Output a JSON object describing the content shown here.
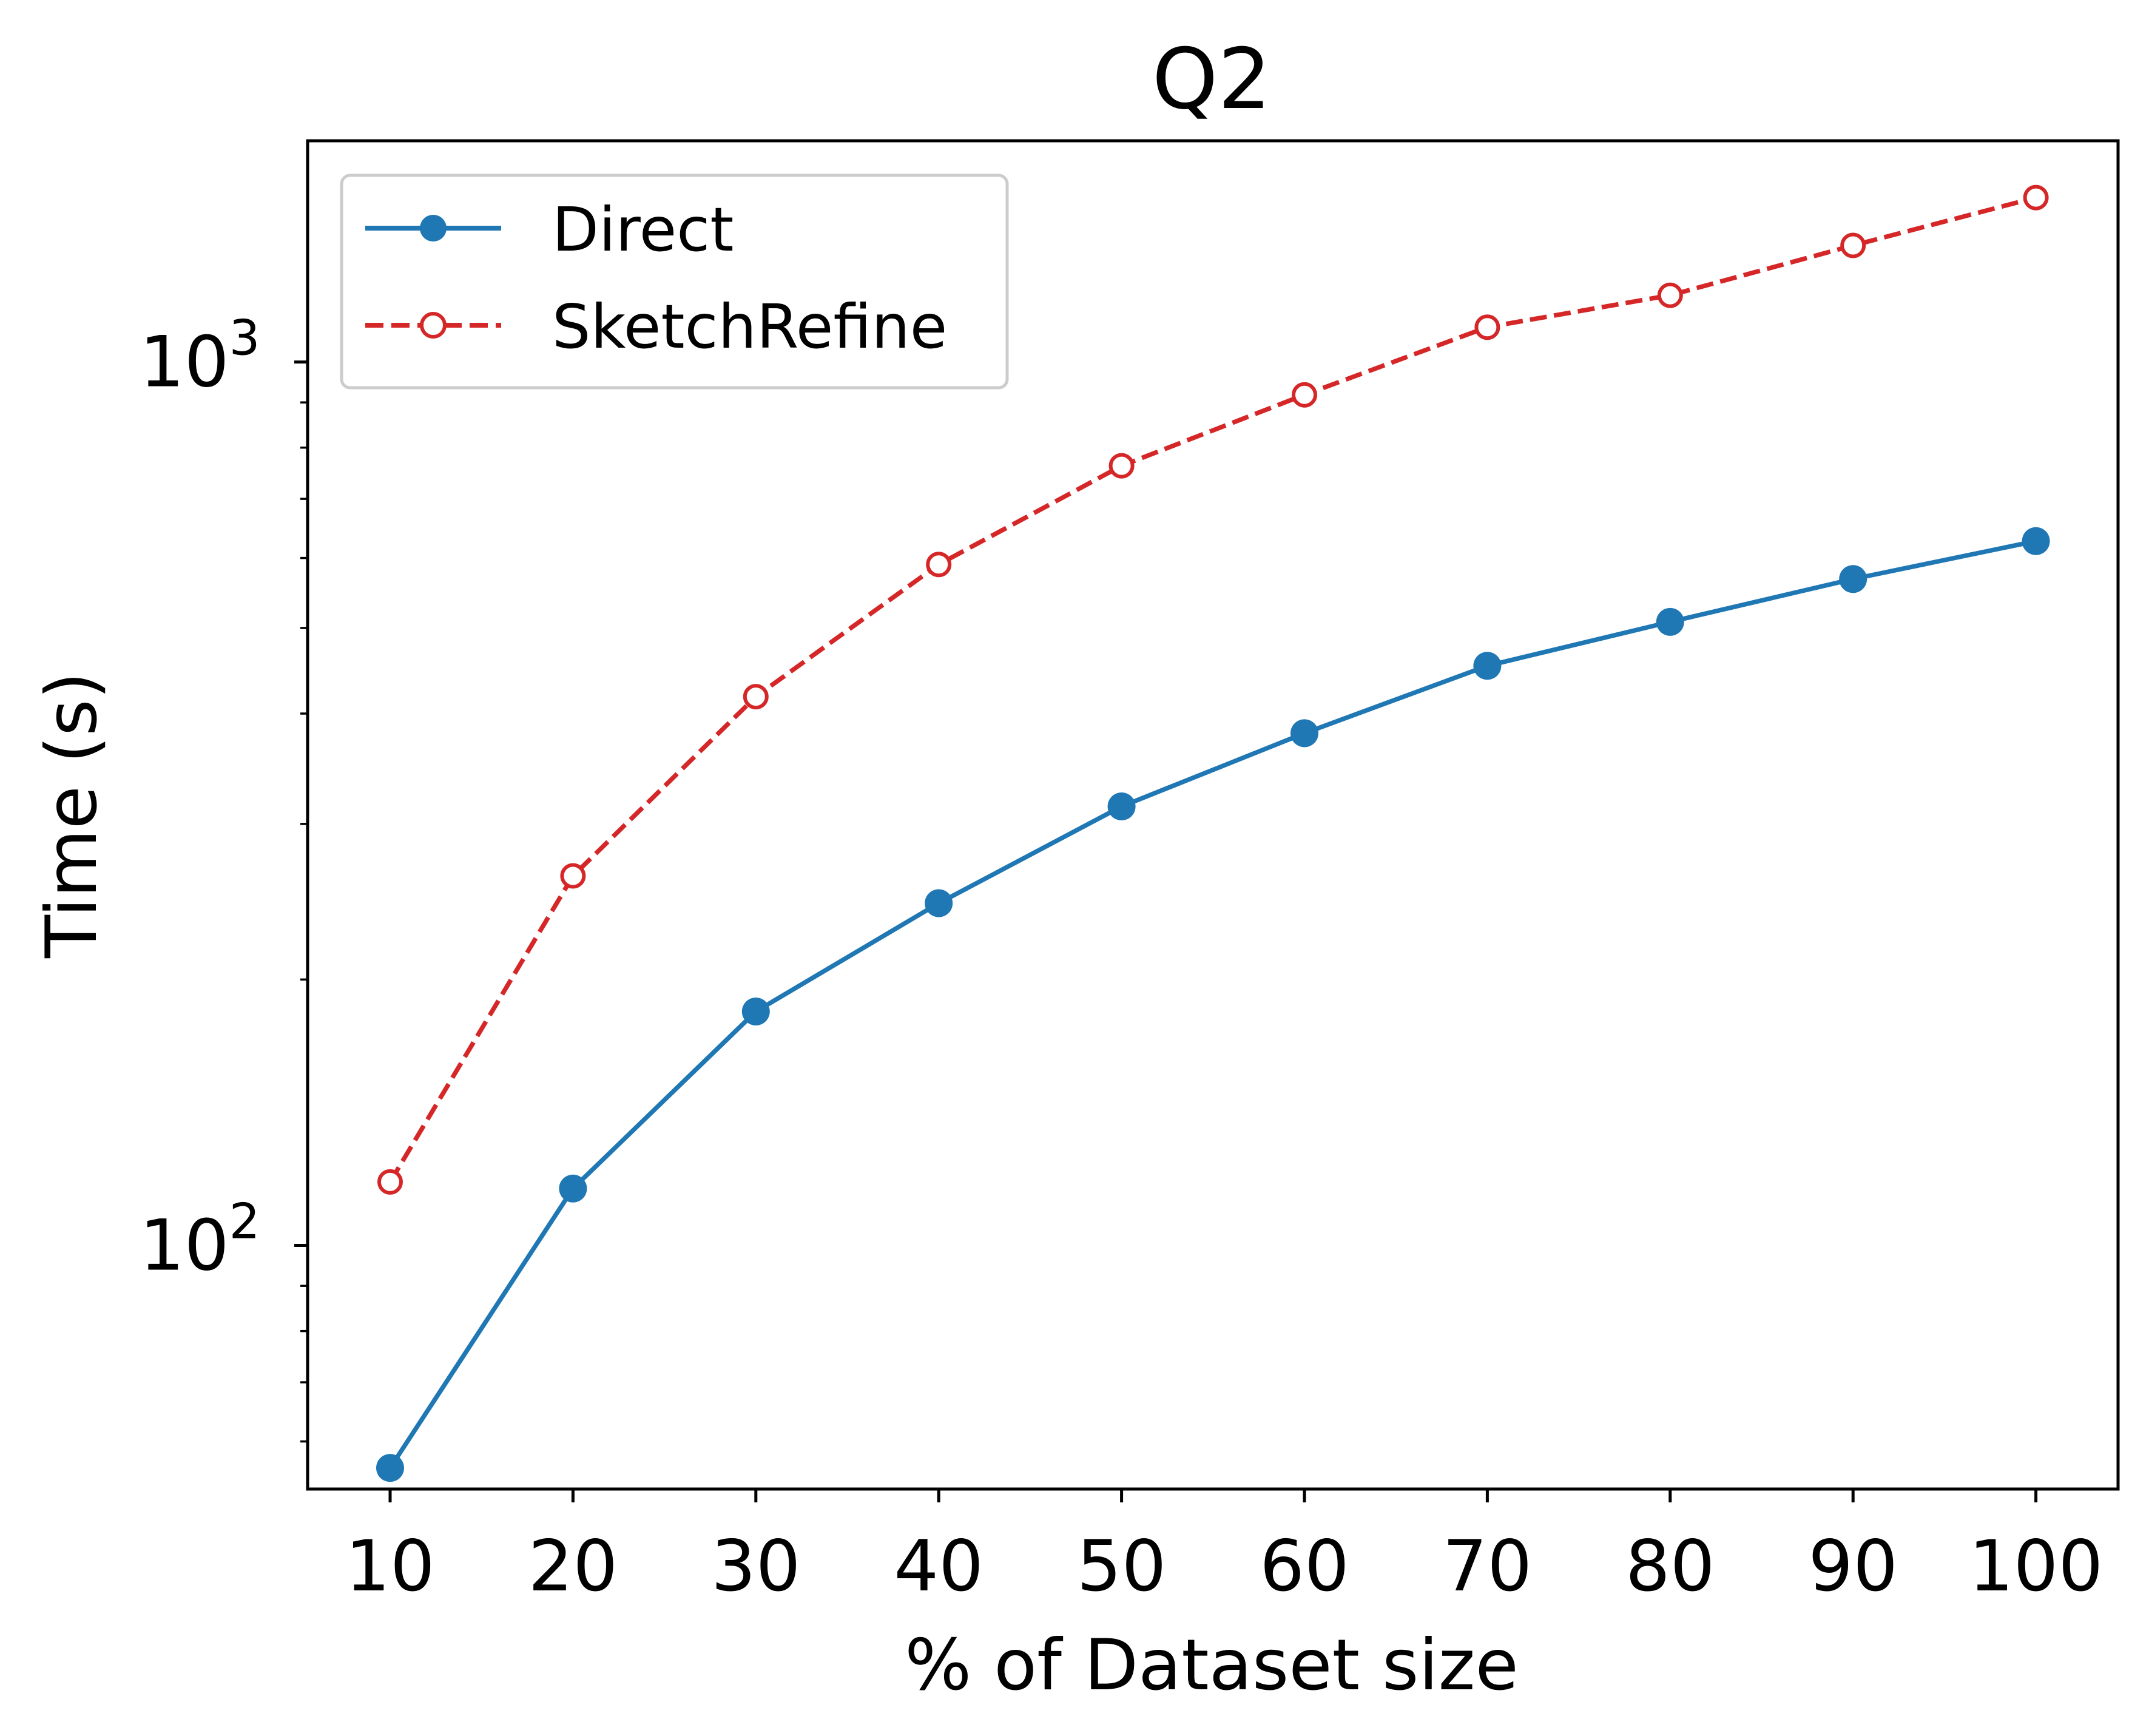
{
  "chart_data": {
    "type": "line",
    "title": "Q2",
    "xlabel": "% of Dataset size",
    "ylabel": "Time (s)",
    "x": [
      10,
      20,
      30,
      40,
      50,
      60,
      70,
      80,
      90,
      100
    ],
    "xticks": [
      "10",
      "20",
      "30",
      "40",
      "50",
      "60",
      "70",
      "80",
      "90",
      "100"
    ],
    "yscale": "log",
    "ylim": [
      53,
      1780
    ],
    "yticks": [
      {
        "value": 100,
        "base": "10",
        "exp": "2"
      },
      {
        "value": 1000,
        "base": "10",
        "exp": "3"
      }
    ],
    "grid": false,
    "legend_position": "top-left",
    "series": [
      {
        "name": "Direct",
        "color": "#1f77b4",
        "linestyle": "solid",
        "marker": "filled-circle",
        "values": [
          56,
          116,
          184,
          244,
          314,
          380,
          453,
          508,
          568,
          627
        ]
      },
      {
        "name": "SketchRefine",
        "color": "#d62728",
        "linestyle": "dashed",
        "marker": "hollow-circle",
        "values": [
          118,
          262,
          418,
          590,
          763,
          918,
          1095,
          1190,
          1355,
          1535
        ]
      }
    ]
  }
}
